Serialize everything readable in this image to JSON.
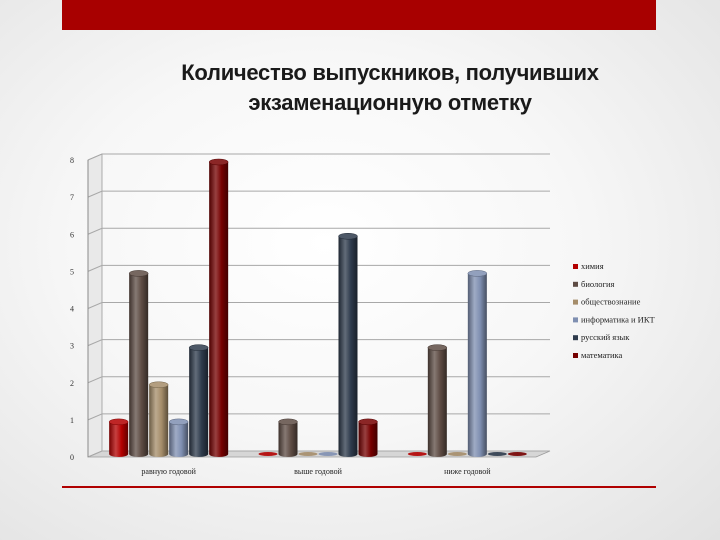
{
  "header": {
    "title_line1": "Количество выпускников, получивших",
    "title_line2": "экзаменационную отметку"
  },
  "chart_data": {
    "type": "bar",
    "categories": [
      "равную годовой",
      "выше годовой",
      "ниже годовой"
    ],
    "ylim": [
      0,
      8
    ],
    "yticks": [
      0,
      1,
      2,
      3,
      4,
      5,
      6,
      7,
      8
    ],
    "grid": true,
    "legend_position": "right",
    "series": [
      {
        "name": "химия",
        "color": "#b30000",
        "values": [
          1,
          0,
          0
        ]
      },
      {
        "name": "биология",
        "color": "#5e4c44",
        "values": [
          5,
          1,
          3
        ]
      },
      {
        "name": "обществознание",
        "color": "#a58d6a",
        "values": [
          2,
          0,
          0
        ]
      },
      {
        "name": "информатика и ИКТ",
        "color": "#7f8fb1",
        "values": [
          1,
          0,
          5
        ]
      },
      {
        "name": "русский язык",
        "color": "#2e3b4c",
        "values": [
          3,
          6,
          0
        ]
      },
      {
        "name": "математика",
        "color": "#760000",
        "values": [
          8,
          1,
          0
        ]
      }
    ]
  }
}
